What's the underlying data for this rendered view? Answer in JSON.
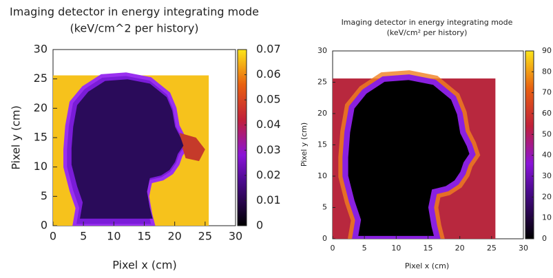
{
  "chart_data": [
    {
      "type": "heatmap",
      "title": "Imaging detector in energy integrating mode",
      "subtitle": "(keV/cm^2 per history)",
      "xlabel": "Pixel x (cm)",
      "ylabel": "Pixel y (cm)",
      "xlim": [
        0,
        30
      ],
      "ylim": [
        0,
        30
      ],
      "xticks": [
        0,
        5,
        10,
        15,
        20,
        25,
        30
      ],
      "yticks": [
        0,
        5,
        10,
        15,
        20,
        25,
        30
      ],
      "clim": [
        0,
        0.07
      ],
      "cticks": [
        0,
        0.01,
        0.02,
        0.03,
        0.04,
        0.05,
        0.06,
        0.07
      ]
    },
    {
      "type": "heatmap",
      "title": "Imaging detector in energy integrating mode",
      "subtitle": "(keV/cm² per history)",
      "xlabel": "Pixel x (cm)",
      "ylabel": "Pixel y (cm)",
      "xlim": [
        0,
        30
      ],
      "ylim": [
        0,
        30
      ],
      "xticks": [
        0,
        5,
        10,
        15,
        20,
        25,
        30
      ],
      "yticks": [
        0,
        5,
        10,
        15,
        20,
        25,
        30
      ],
      "clim": [
        0,
        90
      ],
      "cticks": [
        0,
        10,
        20,
        30,
        40,
        50,
        60,
        70,
        80,
        90
      ]
    }
  ]
}
